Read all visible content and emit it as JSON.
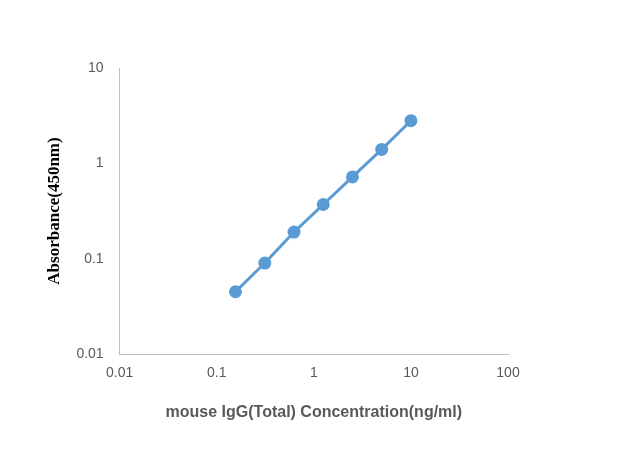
{
  "chart_data": {
    "type": "line",
    "x_label": "mouse IgG(Total) Concentration(ng/ml)",
    "y_label": "Absorbance(450nm)",
    "x": [
      0.156,
      0.3125,
      0.625,
      1.25,
      2.5,
      5,
      10
    ],
    "values": [
      0.045,
      0.09,
      0.19,
      0.37,
      0.72,
      1.4,
      2.8
    ],
    "color": "#5b9bd5",
    "marker": "circle",
    "line_style": "solid",
    "log": true,
    "xlim": [
      0.01,
      100
    ],
    "xticks": [
      0.01,
      0.1,
      1,
      10,
      100
    ],
    "ylim": [
      0.01,
      10
    ],
    "yticks": [
      0.01,
      0.1,
      1,
      10
    ],
    "grid": false,
    "legend": "none"
  }
}
